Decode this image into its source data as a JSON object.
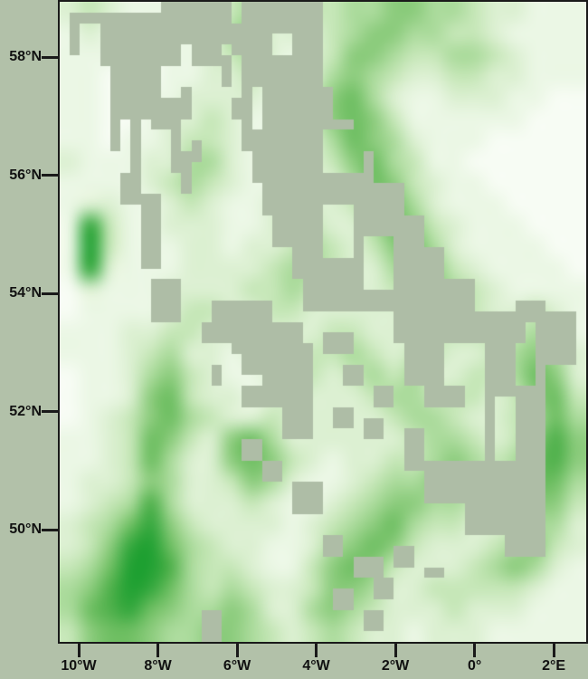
{
  "chart_data": {
    "type": "heatmap",
    "title": "",
    "x_axis": {
      "label": "",
      "lon_range": [
        -10.48,
        2.82
      ],
      "ticks": [
        {
          "label": "10°W",
          "lon": -10
        },
        {
          "label": "8°W",
          "lon": -8
        },
        {
          "label": "6°W",
          "lon": -6
        },
        {
          "label": "4°W",
          "lon": -4
        },
        {
          "label": "2°W",
          "lon": -2
        },
        {
          "label": "0°",
          "lon": 0
        },
        {
          "label": "2°E",
          "lon": 2
        }
      ]
    },
    "y_axis": {
      "label": "",
      "lat_range": [
        48.1,
        58.94
      ],
      "ticks": [
        {
          "label": "58°N",
          "lat": 58
        },
        {
          "label": "56°N",
          "lat": 56
        },
        {
          "label": "54°N",
          "lat": 54
        },
        {
          "label": "52°N",
          "lat": 52
        },
        {
          "label": "50°N",
          "lat": 50
        }
      ]
    },
    "colors": {
      "margin_bg": "#b2c1a9",
      "mask_gray": "#aebda6",
      "frame": "#1a1a1a",
      "tick": "#1a1a1a",
      "label_text": "#111111"
    },
    "colormap": [
      "#f7fcf4",
      "#ebf7e5",
      "#dcf0d2",
      "#c6e7b8",
      "#abdb9c",
      "#8ccc7d",
      "#6fbf63",
      "#50b14c",
      "#35a83e",
      "#21a133"
    ],
    "field": {
      "cols": 26,
      "rows": 30,
      "values": [
        "23211111342233445544322111",
        "12110111452223455443321111",
        "11100112342123554334432111",
        "11000112231124543223322111",
        "11001122221135642112221100",
        "11001223211235653111111000",
        "11011233211224654211100000",
        "21112244211123564311000000",
        "11112343211122465321100000",
        "12211232112222356421110000",
        "18311222112332246532111000",
        "19311122122343235642111100",
        "18211122223443224553211110",
        "02111222233432223454321111",
        "01111233223322222344322321",
        "11122332222223322233333431",
        "11123422122233432332234542",
        "01124532112332343422334652",
        "01125632212322234433323563",
        "01235643223222223443223464",
        "11236532564222222344323575",
        "11236422565321223345434675",
        "12235422354211234455434664",
        "12347422232112345544334553",
        "23468532222123456433223442",
        "23589643221124565322234532",
        "34699743321135653222345421",
        "45798643432235542233333211",
        "46786544542245432223222111",
        "35665445543234322122211111"
      ]
    },
    "mask_grid": {
      "cols": 52,
      "rows": 60
    },
    "mask_rects": [
      [
        1,
        1,
        11,
        2
      ],
      [
        4,
        3,
        8,
        3
      ],
      [
        1,
        3,
        1,
        2
      ],
      [
        10,
        0,
        7,
        2
      ],
      [
        12,
        2,
        5,
        2
      ],
      [
        13,
        4,
        3,
        2
      ],
      [
        8,
        5,
        2,
        6
      ],
      [
        5,
        6,
        5,
        2
      ],
      [
        9,
        3,
        1,
        9
      ],
      [
        7,
        7,
        1,
        10
      ],
      [
        5,
        8,
        1,
        6
      ],
      [
        6,
        8,
        2,
        3
      ],
      [
        10,
        9,
        2,
        3
      ],
      [
        11,
        12,
        1,
        4
      ],
      [
        12,
        8,
        1,
        3
      ],
      [
        12,
        14,
        1,
        4
      ],
      [
        13,
        13,
        1,
        2
      ],
      [
        6,
        16,
        2,
        3
      ],
      [
        8,
        18,
        2,
        7
      ],
      [
        9,
        26,
        3,
        4
      ],
      [
        18,
        0,
        8,
        2
      ],
      [
        17,
        2,
        9,
        3
      ],
      [
        16,
        5,
        10,
        3
      ],
      [
        17,
        8,
        10,
        3
      ],
      [
        18,
        11,
        11,
        3
      ],
      [
        19,
        14,
        12,
        3
      ],
      [
        20,
        17,
        14,
        3
      ],
      [
        21,
        20,
        15,
        3
      ],
      [
        23,
        23,
        15,
        3
      ],
      [
        24,
        26,
        17,
        3
      ],
      [
        33,
        29,
        13,
        3
      ],
      [
        47,
        29,
        4,
        5
      ],
      [
        34,
        32,
        14,
        4
      ],
      [
        36,
        36,
        12,
        4
      ],
      [
        34,
        40,
        14,
        4
      ],
      [
        36,
        44,
        12,
        3
      ],
      [
        40,
        47,
        8,
        3
      ],
      [
        44,
        50,
        4,
        2
      ],
      [
        15,
        28,
        6,
        2
      ],
      [
        14,
        30,
        10,
        2
      ],
      [
        17,
        32,
        8,
        3
      ],
      [
        20,
        35,
        5,
        3
      ],
      [
        22,
        38,
        3,
        3
      ],
      [
        15,
        34,
        2,
        2
      ],
      [
        18,
        36,
        2,
        2
      ],
      [
        26,
        31,
        3,
        2
      ],
      [
        28,
        34,
        2,
        2
      ],
      [
        31,
        36,
        2,
        2
      ],
      [
        27,
        38,
        2,
        2
      ],
      [
        30,
        39,
        2,
        2
      ],
      [
        18,
        41,
        2,
        2
      ],
      [
        20,
        43,
        2,
        2
      ],
      [
        23,
        45,
        3,
        3
      ],
      [
        14,
        57,
        2,
        3
      ],
      [
        29,
        52,
        3,
        2
      ],
      [
        31,
        54,
        2,
        2
      ],
      [
        27,
        55,
        2,
        2
      ],
      [
        33,
        51,
        2,
        2
      ],
      [
        30,
        57,
        2,
        2
      ],
      [
        36,
        53,
        2,
        1
      ],
      [
        26,
        50,
        2,
        2
      ],
      [
        45,
        28,
        3,
        2
      ]
    ],
    "mask_holes": [
      [
        2,
        2,
        2,
        3
      ],
      [
        26,
        12,
        4,
        4
      ],
      [
        26,
        19,
        3,
        5
      ],
      [
        30,
        22,
        3,
        5
      ],
      [
        38,
        32,
        4,
        4
      ],
      [
        45,
        32,
        2,
        4
      ],
      [
        36,
        38,
        4,
        5
      ],
      [
        40,
        35,
        2,
        8
      ],
      [
        43,
        37,
        2,
        6
      ],
      [
        17,
        5,
        1,
        4
      ],
      [
        19,
        8,
        1,
        4
      ],
      [
        21,
        3,
        2,
        2
      ],
      [
        16,
        33,
        2,
        3
      ]
    ]
  }
}
